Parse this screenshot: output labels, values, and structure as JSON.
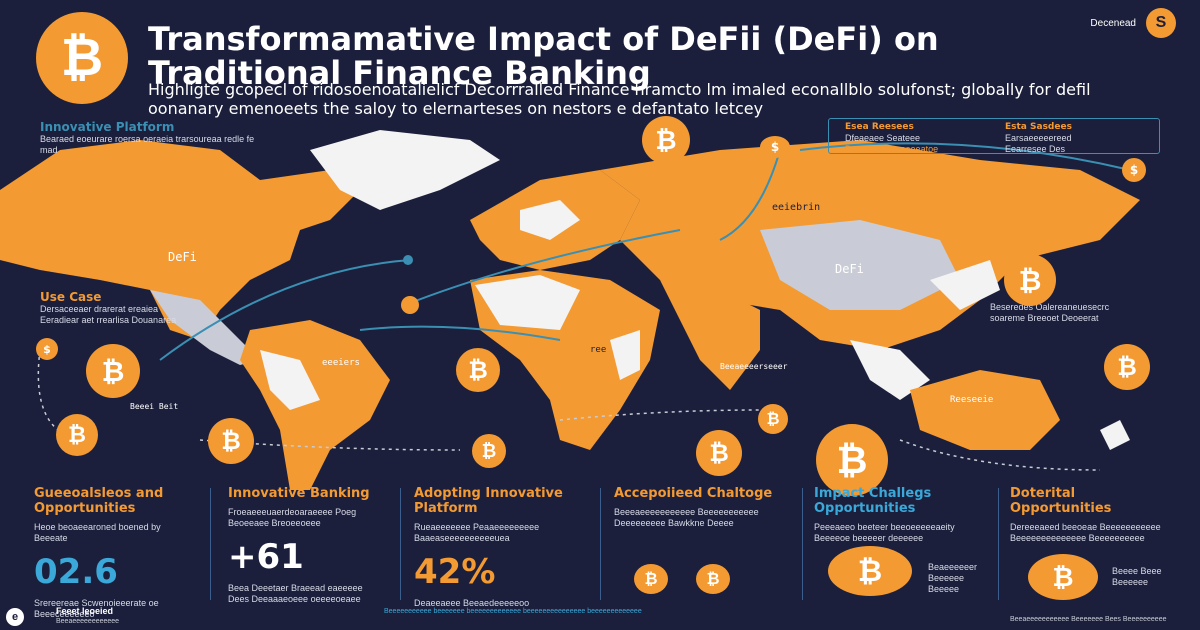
{
  "header": {
    "title": "Transformamative Impact of DeFii (DeFi) on Traditional Finance Banking",
    "subtitle": "Highligte gcopecl of ridosoenoatalielicf Decorrralled Finance hramcto lm imaled econallblo solufonst; globally for defil oonanary emenoeets the saloy to elernarteses on nestors e defantato letcey",
    "badge_text": "Decenead",
    "badge_coin": "S"
  },
  "map_labels": {
    "innovative_platform": "Innovative Platform",
    "innovative_platform_text": "Bearaed eoeurare roersa oeraeia trarsoureaa redle fe mad",
    "use_case": "Use Case",
    "use_case_text": "Dersaceeaer drarerat ereaiea Eeradiear aet rrearlisa Douanarea",
    "defi_na": "DeFi",
    "defi_asia": "DeFi",
    "region_europe": "eeiebrin",
    "region_south_america": "eeeiers",
    "region_africa": "ree",
    "region_australia": "Reeseeie",
    "small_label_1": "Beeei Beit",
    "small_label_2": "Beeaeeeerseeer",
    "right_text": "Beseredes Oalereaneuesecrc soareme Breeoet Deoeerat"
  },
  "infobox": {
    "left_title": "Esea Reesees",
    "left_line1": "Dfeaeaee Seateee",
    "left_line2": "Dsaeaseeeeeaaeeatoe",
    "right_title": "Esta Sasdees",
    "right_line1": "Earsaeeeeereed",
    "right_line2": "Eearresee Des"
  },
  "columns": [
    {
      "heading": "Gueeoalsleos and Opportunities",
      "text": "Heoe beoaeearoned boened by Beeeate",
      "stat": "02.6",
      "foot": "Srereereae Scwenoieeerate oe Beeeceeeeeeo"
    },
    {
      "heading": "Innovative Banking",
      "text": "Froeaeeeuaerdeoaraeeee Poeg Beoeeaee Breoeeoeee",
      "stat": "+61",
      "foot": "Beea Deeetaer Braeead eaeeeee Dees Deeaaaeoeee oeeeeoeaee"
    },
    {
      "heading": "Adopting Innovative Platform",
      "text": "Rueaeeeeeee Peaaeeeeeeeee Baaeaseeeeeeeeeeuea",
      "stat": "42%",
      "foot": "Deaeeaeee Beeaedeeeeeoo"
    },
    {
      "heading": "Accepoiieed Chaltoge",
      "text": "Beeeaeeeeeeeeeee Beeeeeeeeeee Deeeeeeeee Bawkkne Deeee",
      "stat": "",
      "foot": ""
    },
    {
      "heading": "Impact Challegs Opportunities",
      "text": "Peeeaeeo beeteer beeoeeeeeaeity Beeeeoe beeeeer deeeeee",
      "stat": "",
      "foot": "Beaeeeeeer Beeeeee Beeeee"
    },
    {
      "heading": "Doterital Opportunities",
      "text": "Dereeeaeed beeoeae Beeeeeeeeeee Beeeeeeeeeeeeee Beeeeeeeeee",
      "stat": "",
      "foot": "Beeee Beee Beeeeee"
    }
  ],
  "footer": {
    "brand_title": "Feeet leoeied",
    "brand_sub": "Beeaeeeeeeeeeeee",
    "center_text": "Beeeeeeeeeee beeeeeee beeeeeeeeeeeee beeeeeeeeeeeeeee beeeeeeeeeeeee",
    "right_text": "Beeaeeeeeeeeeee Beeeeeee Bees Beeeeeeeeee"
  },
  "colors": {
    "background": "#1b1f3b",
    "accent": "#f39a33",
    "line": "#3a8fb3",
    "map_gray": "#c9ccd6",
    "map_white": "#f3f3f3"
  }
}
